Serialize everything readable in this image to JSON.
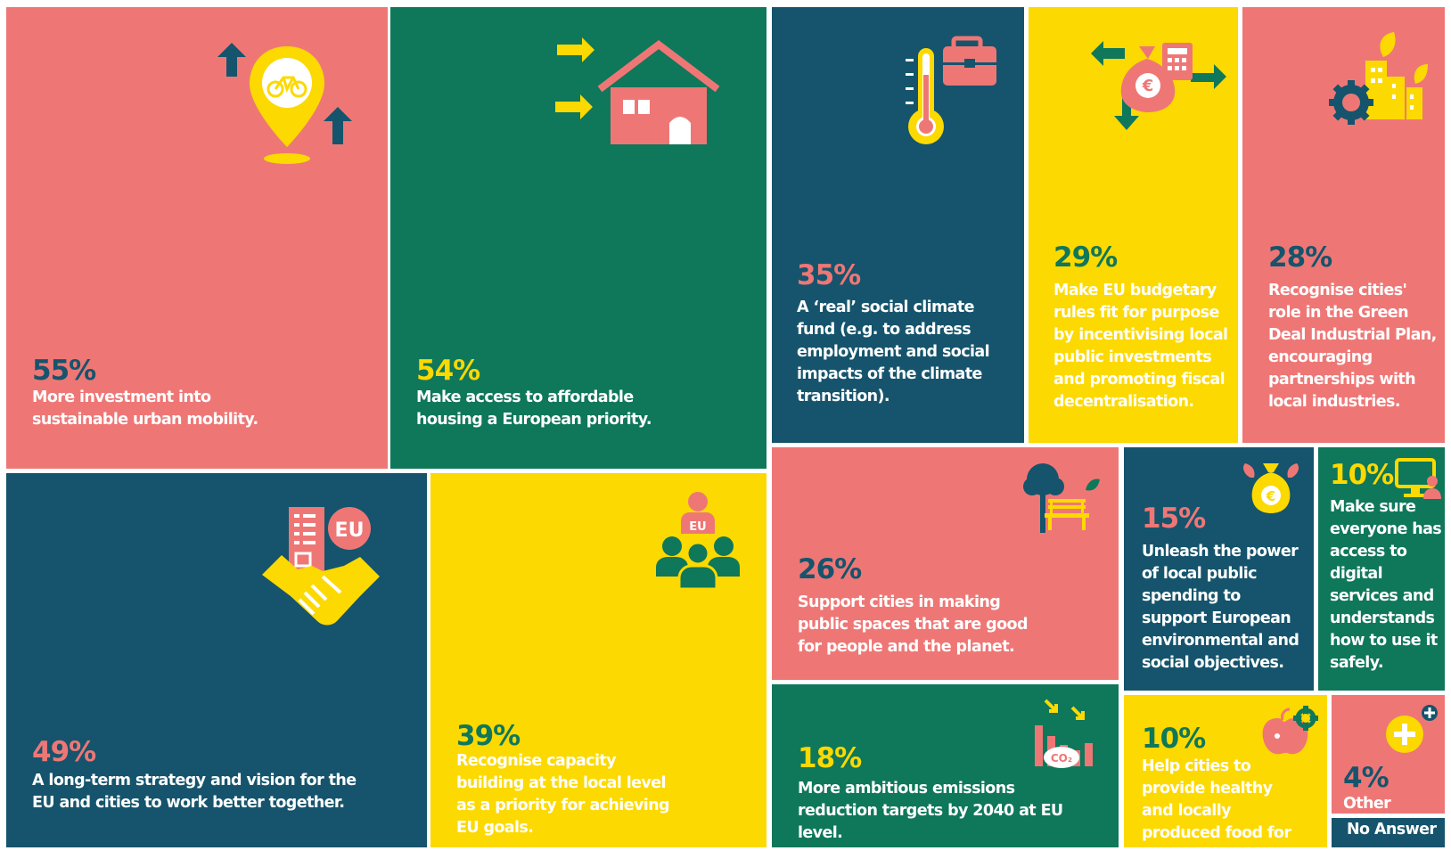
{
  "colors": {
    "pink": "#EE7776",
    "green": "#0F775A",
    "navy": "#15546C",
    "yellow": "#FCD900",
    "white": "#FFFFFF"
  },
  "chart_data": {
    "type": "treemap",
    "title": "",
    "items": [
      {
        "id": "mobility",
        "value": 55,
        "value_label": "55%",
        "label": "More investment into sustainable urban mobility.",
        "icon": "bicycle-location-pin-icon"
      },
      {
        "id": "housing",
        "value": 54,
        "value_label": "54%",
        "label": "Make access to affordable housing a European priority.",
        "icon": "house-icon"
      },
      {
        "id": "climate-fund",
        "value": 35,
        "value_label": "35%",
        "label": "A ‘real’ social climate fund (e.g. to address employment and social impacts of the climate transition).",
        "icon": "thermometer-briefcase-icon"
      },
      {
        "id": "budget-rules",
        "value": 29,
        "value_label": "29%",
        "label": "Make EU budgetary rules fit for purpose by incentivising local public investments and promoting fiscal decentralisation.",
        "icon": "money-bag-calculator-icon"
      },
      {
        "id": "green-deal",
        "value": 28,
        "value_label": "28%",
        "label": "Recognise cities' role in the Green Deal Industrial Plan, encouraging partnerships with local industries.",
        "icon": "gear-factory-icon"
      },
      {
        "id": "strategy",
        "value": 49,
        "value_label": "49%",
        "label": "A long-term strategy and vision for the EU and cities to work better together.",
        "icon": "handshake-eu-icon"
      },
      {
        "id": "capacity",
        "value": 39,
        "value_label": "39%",
        "label": "Recognise capacity building at the local level as a priority for achieving EU goals.",
        "icon": "eu-people-group-icon"
      },
      {
        "id": "public-spaces",
        "value": 26,
        "value_label": "26%",
        "label": "Support cities in making public spaces that are good for people and the planet.",
        "icon": "tree-bench-icon"
      },
      {
        "id": "public-spending",
        "value": 15,
        "value_label": "15%",
        "label": "Unleash the power of local public spending to support European environmental and social objectives.",
        "icon": "euro-bag-icon"
      },
      {
        "id": "digital",
        "value": 10,
        "value_label": "10%",
        "label": "Make sure everyone has access to digital services and understands how to use it safely.",
        "icon": "computer-person-icon"
      },
      {
        "id": "emissions",
        "value": 18,
        "value_label": "18%",
        "label": "More ambitious emissions reduction targets by 2040 at EU level.",
        "icon": "co2-chart-icon"
      },
      {
        "id": "food",
        "value": 10,
        "value_label": "10%",
        "label": "Help cities to provide healthy and locally produced food for everyone.",
        "icon": "apple-gear-icon"
      },
      {
        "id": "other",
        "value": 4,
        "value_label": "4%",
        "label": "Other",
        "icon": "plus-circle-icon"
      },
      {
        "id": "no-answer",
        "value": null,
        "value_label": "",
        "label": "No Answer",
        "icon": ""
      }
    ]
  }
}
